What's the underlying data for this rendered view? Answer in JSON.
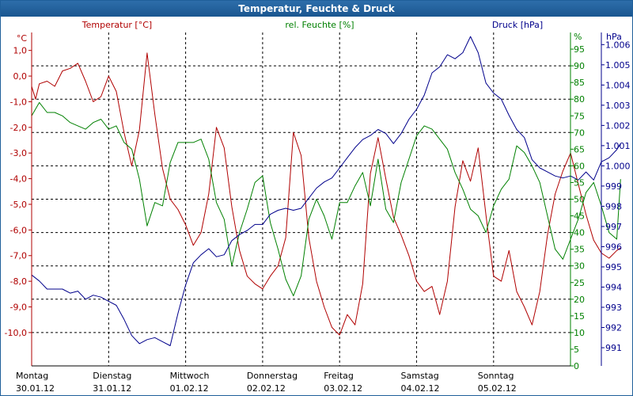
{
  "window": {
    "title": "Temperatur, Feuchte & Druck"
  },
  "colors": {
    "temperature": "#b00000",
    "humidity": "#008000",
    "pressure": "#00008b",
    "grid": "#000000",
    "titlebar": "#1f5f9a"
  },
  "chart_data": {
    "type": "line",
    "title": "Temperatur, Feuchte & Druck",
    "grid": true,
    "x_categories": [
      {
        "day": "Montag",
        "date": "30.01.12"
      },
      {
        "day": "Dienstag",
        "date": "31.01.12"
      },
      {
        "day": "Mittwoch",
        "date": "01.02.12"
      },
      {
        "day": "Donnerstag",
        "date": "02.02.12"
      },
      {
        "day": "Freitag",
        "date": "03.02.12"
      },
      {
        "day": "Samstag",
        "date": "04.02.12"
      },
      {
        "day": "Sonntag",
        "date": "05.02.12"
      }
    ],
    "axes": {
      "temperature": {
        "label": "Temperatur [°C]",
        "unit": "°C",
        "side": "left",
        "range": [
          -11.3,
          1.7
        ],
        "ticks": [
          "1,0",
          "0,0",
          "-1,0",
          "-2,0",
          "-3,0",
          "-4,0",
          "-5,0",
          "-6,0",
          "-7,0",
          "-8,0",
          "-9,0",
          "-10,0"
        ]
      },
      "humidity": {
        "label": "rel. Feuchte [%]",
        "unit": "%",
        "side": "right",
        "range": [
          0,
          100
        ],
        "ticks": [
          "95",
          "90",
          "85",
          "80",
          "75",
          "70",
          "65",
          "60",
          "55",
          "50",
          "45",
          "40",
          "35",
          "30",
          "25",
          "20",
          "15",
          "10",
          "5",
          "0"
        ]
      },
      "pressure": {
        "label": "Druck [hPa]",
        "unit": "hPa",
        "side": "right",
        "range": [
          990.1,
          1006.6
        ],
        "ticks": [
          "1.006",
          "1.005",
          "1.004",
          "1.003",
          "1.002",
          "1.001",
          "1.000",
          "999",
          "998",
          "997",
          "996",
          "995",
          "994",
          "993",
          "992",
          "991"
        ]
      }
    },
    "series": [
      {
        "name": "Temperatur [°C]",
        "axis": "temperature",
        "x": [
          0,
          0.05,
          0.1,
          0.2,
          0.3,
          0.4,
          0.5,
          0.6,
          0.7,
          0.8,
          0.9,
          1.0,
          1.1,
          1.2,
          1.3,
          1.4,
          1.5,
          1.6,
          1.7,
          1.8,
          1.9,
          2.0,
          2.1,
          2.2,
          2.3,
          2.4,
          2.5,
          2.6,
          2.7,
          2.8,
          2.9,
          3.0,
          3.1,
          3.2,
          3.3,
          3.4,
          3.5,
          3.6,
          3.7,
          3.8,
          3.9,
          4.0,
          4.1,
          4.2,
          4.3,
          4.4,
          4.5,
          4.6,
          4.7,
          4.8,
          4.9,
          5.0,
          5.1,
          5.2,
          5.3,
          5.4,
          5.5,
          5.6,
          5.7,
          5.8,
          5.9,
          6.0,
          6.1,
          6.2,
          6.3,
          6.4,
          6.5,
          6.6,
          6.7,
          6.8,
          6.9,
          7.0,
          7.1,
          7.2,
          7.3,
          7.4,
          7.5,
          7.6,
          7.65
        ],
        "values": [
          -0.4,
          -0.9,
          -0.3,
          -0.2,
          -0.4,
          0.2,
          0.3,
          0.5,
          -0.2,
          -1.0,
          -0.8,
          0.0,
          -0.6,
          -2.2,
          -3.5,
          -2.1,
          0.9,
          -1.5,
          -3.6,
          -4.8,
          -5.2,
          -5.8,
          -6.6,
          -6.1,
          -4.6,
          -2.0,
          -2.8,
          -5.1,
          -6.8,
          -7.8,
          -8.1,
          -8.3,
          -7.8,
          -7.4,
          -6.3,
          -2.2,
          -3.1,
          -6.3,
          -8.0,
          -9.0,
          -9.8,
          -10.1,
          -9.3,
          -9.7,
          -8.1,
          -3.8,
          -2.4,
          -4.0,
          -5.5,
          -6.2,
          -7.0,
          -8.0,
          -8.4,
          -8.2,
          -9.3,
          -8.0,
          -5.1,
          -3.3,
          -4.1,
          -2.8,
          -5.4,
          -7.8,
          -8.0,
          -6.8,
          -8.4,
          -9.0,
          -9.7,
          -8.4,
          -6.2,
          -4.6,
          -3.7,
          -3.0,
          -4.2,
          -5.4,
          -6.4,
          -6.9,
          -7.1,
          -6.8,
          -6.7
        ]
      },
      {
        "name": "rel. Feuchte [%]",
        "axis": "humidity",
        "x": [
          0,
          0.1,
          0.2,
          0.3,
          0.4,
          0.5,
          0.6,
          0.7,
          0.8,
          0.9,
          1.0,
          1.1,
          1.2,
          1.3,
          1.4,
          1.5,
          1.6,
          1.7,
          1.8,
          1.9,
          2.0,
          2.1,
          2.2,
          2.3,
          2.4,
          2.5,
          2.6,
          2.7,
          2.8,
          2.9,
          3.0,
          3.1,
          3.2,
          3.3,
          3.4,
          3.5,
          3.6,
          3.7,
          3.8,
          3.9,
          4.0,
          4.1,
          4.2,
          4.3,
          4.4,
          4.5,
          4.6,
          4.7,
          4.8,
          4.9,
          5.0,
          5.1,
          5.2,
          5.3,
          5.4,
          5.5,
          5.6,
          5.7,
          5.8,
          5.9,
          6.0,
          6.1,
          6.2,
          6.3,
          6.4,
          6.5,
          6.6,
          6.7,
          6.8,
          6.9,
          7.0,
          7.1,
          7.2,
          7.3,
          7.4,
          7.5,
          7.6,
          7.65
        ],
        "values": [
          75,
          79,
          76,
          76,
          75,
          73,
          72,
          71,
          73,
          74,
          71,
          72,
          67,
          65,
          56,
          42,
          49,
          48,
          61,
          67,
          67,
          67,
          68,
          62,
          49,
          44,
          30,
          40,
          47,
          55,
          57,
          43,
          35,
          26,
          21,
          27,
          44,
          50,
          45,
          38,
          49,
          49,
          54,
          58,
          48,
          62,
          47,
          43,
          55,
          62,
          69,
          72,
          71,
          68,
          65,
          58,
          53,
          47,
          45,
          40,
          48,
          53,
          56,
          66,
          64,
          60,
          55,
          45,
          35,
          32,
          38,
          44,
          52,
          55,
          48,
          40,
          38,
          56
        ]
      },
      {
        "name": "Druck [hPa]",
        "axis": "pressure",
        "x": [
          0,
          0.1,
          0.2,
          0.3,
          0.4,
          0.5,
          0.6,
          0.7,
          0.8,
          0.9,
          1.0,
          1.1,
          1.2,
          1.3,
          1.4,
          1.5,
          1.6,
          1.7,
          1.8,
          1.9,
          2.0,
          2.1,
          2.2,
          2.3,
          2.4,
          2.5,
          2.6,
          2.7,
          2.8,
          2.9,
          3.0,
          3.1,
          3.2,
          3.3,
          3.4,
          3.5,
          3.6,
          3.7,
          3.8,
          3.9,
          4.0,
          4.1,
          4.2,
          4.3,
          4.4,
          4.5,
          4.6,
          4.7,
          4.8,
          4.9,
          5.0,
          5.1,
          5.2,
          5.3,
          5.4,
          5.5,
          5.6,
          5.7,
          5.8,
          5.9,
          6.0,
          6.1,
          6.2,
          6.3,
          6.4,
          6.5,
          6.6,
          6.7,
          6.8,
          6.9,
          7.0,
          7.1,
          7.2,
          7.3,
          7.4,
          7.5,
          7.6,
          7.65
        ],
        "values": [
          994.6,
          994.3,
          993.9,
          993.9,
          993.9,
          993.7,
          993.8,
          993.4,
          993.6,
          993.5,
          993.3,
          993.1,
          992.4,
          991.6,
          991.2,
          991.4,
          991.5,
          991.3,
          991.1,
          992.7,
          994.1,
          995.2,
          995.6,
          995.9,
          995.5,
          995.6,
          996.3,
          996.6,
          996.8,
          997.1,
          997.1,
          997.6,
          997.8,
          997.9,
          997.8,
          997.9,
          998.4,
          998.9,
          999.2,
          999.4,
          999.9,
          1000.4,
          1000.9,
          1001.3,
          1001.5,
          1001.8,
          1001.6,
          1001.1,
          1001.6,
          1002.3,
          1002.8,
          1003.5,
          1004.6,
          1004.9,
          1005.5,
          1005.3,
          1005.6,
          1006.4,
          1005.6,
          1004.1,
          1003.6,
          1003.3,
          1002.5,
          1001.8,
          1001.4,
          1000.3,
          999.9,
          999.7,
          999.5,
          999.4,
          999.5,
          999.3,
          999.7,
          999.3,
          1000.2,
          1000.4,
          1000.8,
          1001.1
        ]
      }
    ]
  }
}
